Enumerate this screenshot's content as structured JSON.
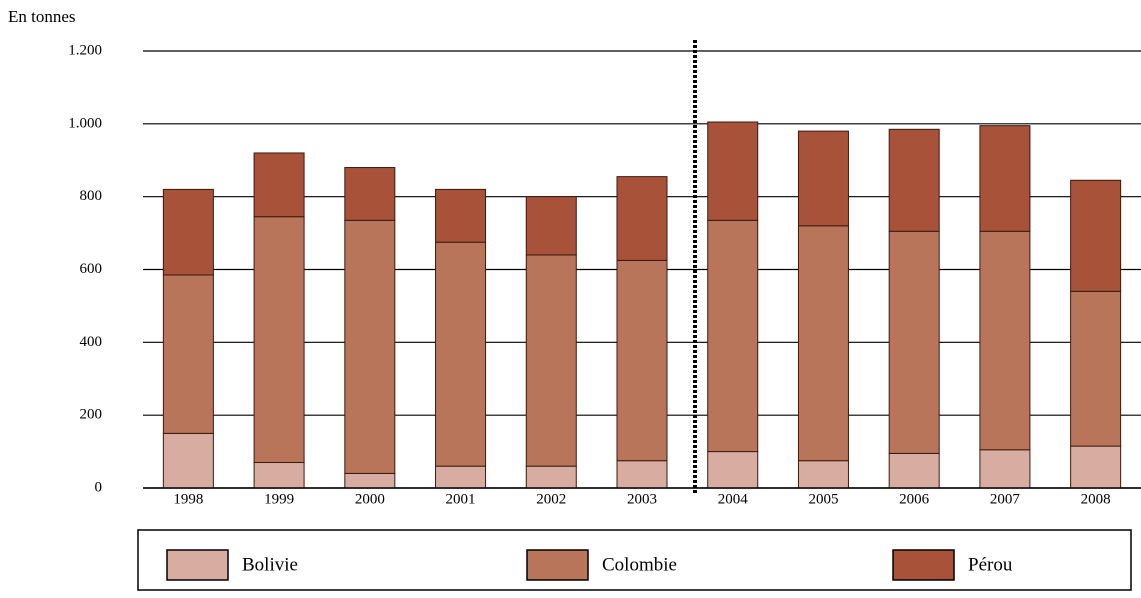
{
  "chart_data": {
    "type": "stacked_bar",
    "y_label": "En tonnes",
    "categories": [
      "1998",
      "1999",
      "2000",
      "2001",
      "2002",
      "2003",
      "2004",
      "2005",
      "2006",
      "2007",
      "2008"
    ],
    "series": [
      {
        "name": "Bolivie",
        "color": "#d9aca1",
        "values": [
          150,
          70,
          40,
          60,
          60,
          75,
          100,
          75,
          95,
          105,
          115
        ]
      },
      {
        "name": "Colombie",
        "color": "#b97559",
        "values": [
          435,
          675,
          695,
          615,
          580,
          550,
          635,
          645,
          610,
          600,
          425
        ]
      },
      {
        "name": "Pérou",
        "color": "#a8523a",
        "values": [
          235,
          175,
          145,
          145,
          160,
          230,
          270,
          260,
          280,
          290,
          305
        ]
      }
    ],
    "ylim": [
      0,
      1200
    ],
    "yticks": [
      0,
      200,
      400,
      600,
      800,
      {
        "value": 1000,
        "label": "1.000"
      },
      {
        "value": 1200,
        "label": "1.200"
      }
    ],
    "grid": true
  }
}
